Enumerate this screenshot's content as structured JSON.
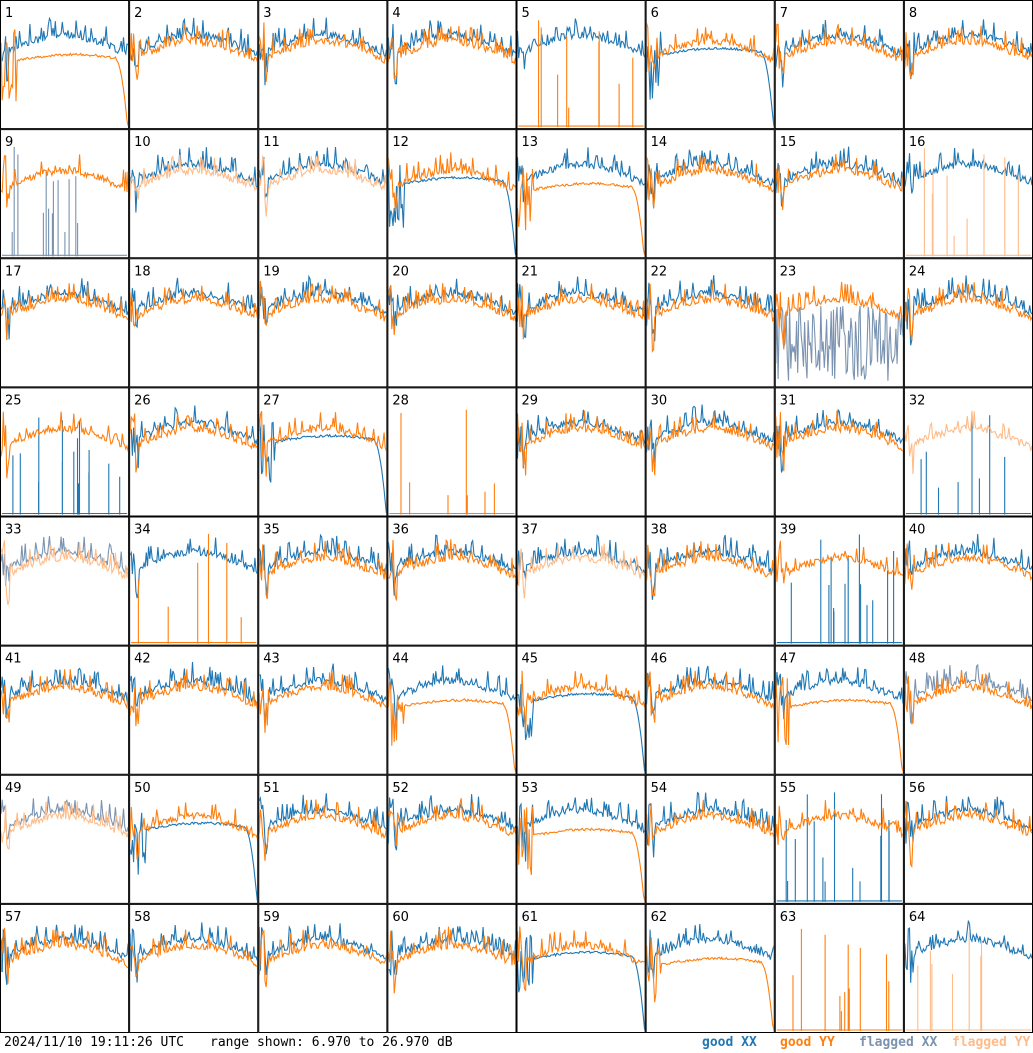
{
  "timestamp": "2024/11/10 19:11:26 UTC",
  "range_text": "range shown: 6.970 to 26.970 dB",
  "legend": [
    {
      "label": "good XX",
      "color": "#1f77b4"
    },
    {
      "label": "good YY",
      "color": "#ff7f0e"
    },
    {
      "label": "flagged XX",
      "color": "#7a93b0"
    },
    {
      "label": "flagged YY",
      "color": "#ffbb88"
    }
  ],
  "chart_data": {
    "type": "line",
    "ylim": [
      6.97,
      26.97
    ],
    "yunit": "dB",
    "grid_rows": 8,
    "grid_cols": 8,
    "panels": [
      {
        "id": "1",
        "xx": "good",
        "yy": "good",
        "xx_shape": "normal",
        "yy_shape": "rolloff"
      },
      {
        "id": "2",
        "xx": "good",
        "yy": "good",
        "xx_shape": "normal",
        "yy_shape": "normal"
      },
      {
        "id": "3",
        "xx": "good",
        "yy": "good",
        "xx_shape": "normal",
        "yy_shape": "normal"
      },
      {
        "id": "4",
        "xx": "good",
        "yy": "good",
        "xx_shape": "normal",
        "yy_shape": "normal"
      },
      {
        "id": "5",
        "xx": "good",
        "yy": "good",
        "xx_shape": "normal",
        "yy_shape": "spikes"
      },
      {
        "id": "6",
        "xx": "good",
        "yy": "good",
        "xx_shape": "rolloff",
        "yy_shape": "normal"
      },
      {
        "id": "7",
        "xx": "good",
        "yy": "good",
        "xx_shape": "normal",
        "yy_shape": "normal"
      },
      {
        "id": "8",
        "xx": "good",
        "yy": "good",
        "xx_shape": "normal",
        "yy_shape": "normal"
      },
      {
        "id": "9",
        "xx": "flagged",
        "yy": "good",
        "xx_shape": "spikes",
        "yy_shape": "normal"
      },
      {
        "id": "10",
        "xx": "good",
        "yy": "flagged",
        "xx_shape": "normal",
        "yy_shape": "normal"
      },
      {
        "id": "11",
        "xx": "good",
        "yy": "flagged",
        "xx_shape": "normal",
        "yy_shape": "normal"
      },
      {
        "id": "12",
        "xx": "good",
        "yy": "good",
        "xx_shape": "rolloff",
        "yy_shape": "normal"
      },
      {
        "id": "13",
        "xx": "good",
        "yy": "good",
        "xx_shape": "normal",
        "yy_shape": "rolloff"
      },
      {
        "id": "14",
        "xx": "good",
        "yy": "good",
        "xx_shape": "normal",
        "yy_shape": "normal"
      },
      {
        "id": "15",
        "xx": "good",
        "yy": "good",
        "xx_shape": "normal",
        "yy_shape": "normal"
      },
      {
        "id": "16",
        "xx": "good",
        "yy": "flagged",
        "xx_shape": "normal",
        "yy_shape": "spikes"
      },
      {
        "id": "17",
        "xx": "good",
        "yy": "good",
        "xx_shape": "normal",
        "yy_shape": "normal"
      },
      {
        "id": "18",
        "xx": "good",
        "yy": "good",
        "xx_shape": "normal",
        "yy_shape": "normal"
      },
      {
        "id": "19",
        "xx": "good",
        "yy": "good",
        "xx_shape": "normal",
        "yy_shape": "normal"
      },
      {
        "id": "20",
        "xx": "good",
        "yy": "good",
        "xx_shape": "normal",
        "yy_shape": "normal"
      },
      {
        "id": "21",
        "xx": "good",
        "yy": "good",
        "xx_shape": "normal",
        "yy_shape": "normal"
      },
      {
        "id": "22",
        "xx": "good",
        "yy": "good",
        "xx_shape": "normal",
        "yy_shape": "normal"
      },
      {
        "id": "23",
        "xx": "flagged",
        "yy": "good",
        "xx_shape": "noisy",
        "yy_shape": "normal"
      },
      {
        "id": "24",
        "xx": "good",
        "yy": "good",
        "xx_shape": "normal",
        "yy_shape": "normal"
      },
      {
        "id": "25",
        "xx": "good",
        "yy": "good",
        "xx_shape": "spikes",
        "yy_shape": "normal"
      },
      {
        "id": "26",
        "xx": "good",
        "yy": "good",
        "xx_shape": "normal",
        "yy_shape": "normal"
      },
      {
        "id": "27",
        "xx": "good",
        "yy": "good",
        "xx_shape": "rolloff",
        "yy_shape": "normal"
      },
      {
        "id": "28",
        "xx": "good",
        "yy": "good",
        "xx_shape": "none",
        "yy_shape": "spikes"
      },
      {
        "id": "29",
        "xx": "good",
        "yy": "good",
        "xx_shape": "normal",
        "yy_shape": "normal"
      },
      {
        "id": "30",
        "xx": "good",
        "yy": "good",
        "xx_shape": "normal",
        "yy_shape": "normal"
      },
      {
        "id": "31",
        "xx": "good",
        "yy": "good",
        "xx_shape": "normal",
        "yy_shape": "normal"
      },
      {
        "id": "32",
        "xx": "good",
        "yy": "flagged",
        "xx_shape": "spikes",
        "yy_shape": "normal"
      },
      {
        "id": "33",
        "xx": "flagged",
        "yy": "flagged",
        "xx_shape": "normal",
        "yy_shape": "normal"
      },
      {
        "id": "34",
        "xx": "good",
        "yy": "good",
        "xx_shape": "normal",
        "yy_shape": "spikes"
      },
      {
        "id": "35",
        "xx": "good",
        "yy": "good",
        "xx_shape": "normal",
        "yy_shape": "normal"
      },
      {
        "id": "36",
        "xx": "good",
        "yy": "good",
        "xx_shape": "normal",
        "yy_shape": "normal"
      },
      {
        "id": "37",
        "xx": "good",
        "yy": "flagged",
        "xx_shape": "normal",
        "yy_shape": "normal"
      },
      {
        "id": "38",
        "xx": "good",
        "yy": "good",
        "xx_shape": "normal",
        "yy_shape": "normal"
      },
      {
        "id": "39",
        "xx": "good",
        "yy": "good",
        "xx_shape": "spikes",
        "yy_shape": "normal"
      },
      {
        "id": "40",
        "xx": "good",
        "yy": "good",
        "xx_shape": "normal",
        "yy_shape": "normal"
      },
      {
        "id": "41",
        "xx": "good",
        "yy": "good",
        "xx_shape": "normal",
        "yy_shape": "normal"
      },
      {
        "id": "42",
        "xx": "good",
        "yy": "good",
        "xx_shape": "normal",
        "yy_shape": "normal"
      },
      {
        "id": "43",
        "xx": "good",
        "yy": "good",
        "xx_shape": "normal",
        "yy_shape": "normal"
      },
      {
        "id": "44",
        "xx": "good",
        "yy": "good",
        "xx_shape": "normal",
        "yy_shape": "rolloff"
      },
      {
        "id": "45",
        "xx": "good",
        "yy": "good",
        "xx_shape": "rolloff",
        "yy_shape": "normal"
      },
      {
        "id": "46",
        "xx": "good",
        "yy": "good",
        "xx_shape": "normal",
        "yy_shape": "normal"
      },
      {
        "id": "47",
        "xx": "good",
        "yy": "good",
        "xx_shape": "normal",
        "yy_shape": "rolloff"
      },
      {
        "id": "48",
        "xx": "flagged",
        "yy": "good",
        "xx_shape": "normal",
        "yy_shape": "normal"
      },
      {
        "id": "49",
        "xx": "flagged",
        "yy": "flagged",
        "xx_shape": "normal",
        "yy_shape": "normal"
      },
      {
        "id": "50",
        "xx": "good",
        "yy": "good",
        "xx_shape": "rolloff",
        "yy_shape": "normal"
      },
      {
        "id": "51",
        "xx": "good",
        "yy": "good",
        "xx_shape": "normal",
        "yy_shape": "normal"
      },
      {
        "id": "52",
        "xx": "good",
        "yy": "good",
        "xx_shape": "normal",
        "yy_shape": "normal"
      },
      {
        "id": "53",
        "xx": "good",
        "yy": "good",
        "xx_shape": "normal",
        "yy_shape": "rolloff"
      },
      {
        "id": "54",
        "xx": "good",
        "yy": "good",
        "xx_shape": "normal",
        "yy_shape": "normal"
      },
      {
        "id": "55",
        "xx": "good",
        "yy": "good",
        "xx_shape": "spikes",
        "yy_shape": "normal"
      },
      {
        "id": "56",
        "xx": "good",
        "yy": "good",
        "xx_shape": "normal",
        "yy_shape": "normal"
      },
      {
        "id": "57",
        "xx": "good",
        "yy": "good",
        "xx_shape": "normal",
        "yy_shape": "normal"
      },
      {
        "id": "58",
        "xx": "good",
        "yy": "good",
        "xx_shape": "normal",
        "yy_shape": "normal"
      },
      {
        "id": "59",
        "xx": "good",
        "yy": "good",
        "xx_shape": "normal",
        "yy_shape": "normal"
      },
      {
        "id": "60",
        "xx": "good",
        "yy": "good",
        "xx_shape": "normal",
        "yy_shape": "normal"
      },
      {
        "id": "61",
        "xx": "good",
        "yy": "good",
        "xx_shape": "rolloff",
        "yy_shape": "normal"
      },
      {
        "id": "62",
        "xx": "good",
        "yy": "good",
        "xx_shape": "normal",
        "yy_shape": "rolloff"
      },
      {
        "id": "63",
        "xx": "good",
        "yy": "good",
        "xx_shape": "none",
        "yy_shape": "spikes"
      },
      {
        "id": "64",
        "xx": "good",
        "yy": "flagged",
        "xx_shape": "normal",
        "yy_shape": "spikes"
      }
    ]
  }
}
